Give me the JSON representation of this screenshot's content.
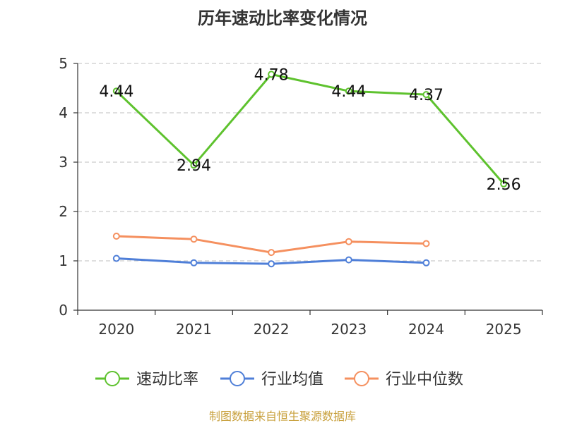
{
  "chart_data": {
    "type": "line",
    "title": "历年速动比率变化情况",
    "categories": [
      "2020",
      "2021",
      "2022",
      "2023",
      "2024",
      "2025"
    ],
    "ylim": [
      0,
      5
    ],
    "yticks": [
      "0",
      "1",
      "2",
      "3",
      "4",
      "5"
    ],
    "grid": true,
    "legend_position": "bottom",
    "series": [
      {
        "name": "速动比率",
        "color": "#5ec22e",
        "values": [
          4.44,
          2.94,
          4.78,
          4.44,
          4.37,
          2.56
        ],
        "labels": [
          "4.44",
          "2.94",
          "4.78",
          "4.44",
          "4.37",
          "2.56"
        ]
      },
      {
        "name": "行业均值",
        "color": "#4f7fd8",
        "values": [
          1.05,
          0.96,
          0.94,
          1.02,
          0.96,
          null
        ]
      },
      {
        "name": "行业中位数",
        "color": "#f5905f",
        "values": [
          1.5,
          1.44,
          1.17,
          1.39,
          1.35,
          null
        ]
      }
    ]
  },
  "source": "制图数据来自恒生聚源数据库"
}
